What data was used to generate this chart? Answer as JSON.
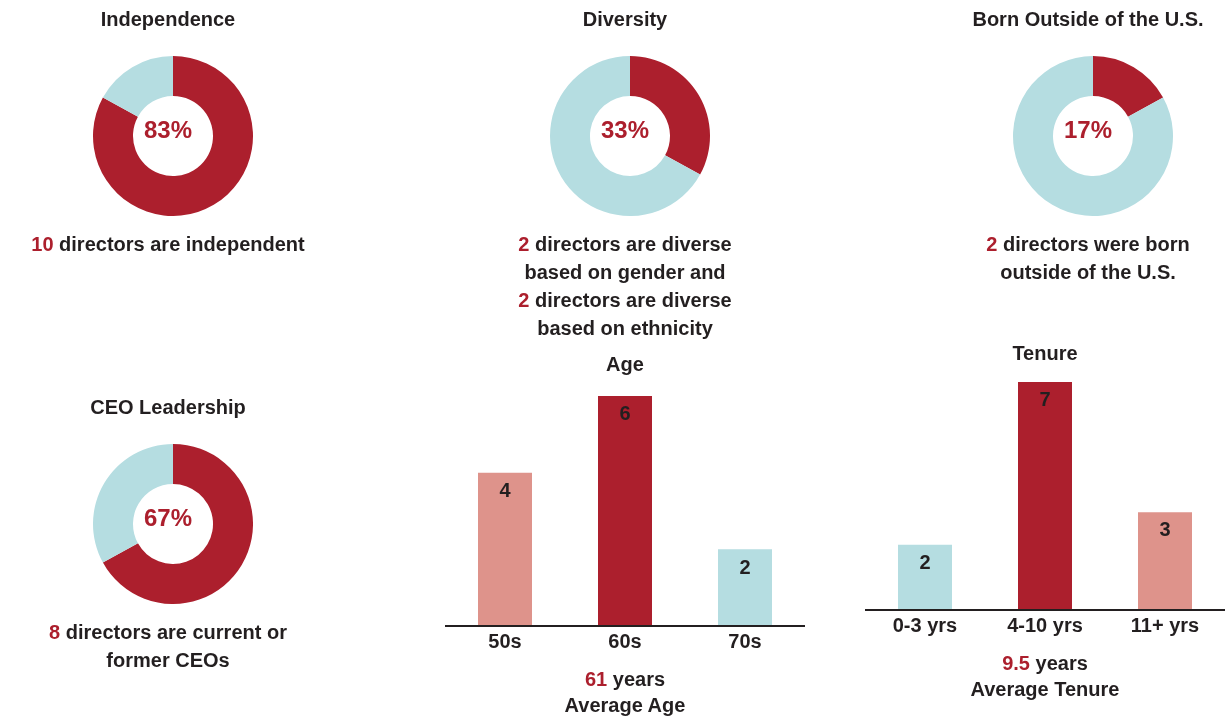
{
  "chart_data": [
    {
      "type": "donut",
      "title": "Independence",
      "categories": [
        null,
        null
      ],
      "values": [
        83,
        17
      ],
      "colors": [
        "#ac1f2d",
        "#b5dde1"
      ],
      "annotations": [
        "83%",
        "10 directors are independent"
      ]
    },
    {
      "type": "donut",
      "title": "Diversity",
      "categories": [
        null,
        null
      ],
      "values": [
        33,
        67
      ],
      "colors": [
        "#ac1f2d",
        "#b5dde1"
      ],
      "annotations": [
        "33%",
        "2 directors are diverse based on gender and",
        "2 directors are diverse based on ethnicity"
      ]
    },
    {
      "type": "donut",
      "title": "Born Outside of the U.S.",
      "categories": [
        null,
        null
      ],
      "values": [
        17,
        83
      ],
      "colors": [
        "#ac1f2d",
        "#b5dde1"
      ],
      "annotations": [
        "17%",
        "2 directors were born outside of the U.S."
      ]
    },
    {
      "type": "donut",
      "title": "CEO Leadership",
      "categories": [
        null,
        null
      ],
      "values": [
        67,
        33
      ],
      "colors": [
        "#ac1f2d",
        "#b5dde1"
      ],
      "annotations": [
        "67%",
        "8 directors are current or former CEOs"
      ]
    },
    {
      "type": "bar",
      "title": "Age",
      "categories": [
        "50s",
        "60s",
        "70s"
      ],
      "values": [
        4,
        6,
        2
      ],
      "colors": [
        "#de938b",
        "#ac1f2d",
        "#b5dde1"
      ],
      "data_labels": true,
      "annotations": [
        "61 years",
        "Average Age"
      ]
    },
    {
      "type": "bar",
      "title": "Tenure",
      "categories": [
        "0-3 yrs",
        "4-10 yrs",
        "11+ yrs"
      ],
      "values": [
        2,
        7,
        3
      ],
      "colors": [
        "#b5dde1",
        "#ac1f2d",
        "#de938b"
      ],
      "data_labels": true,
      "annotations": [
        "9.5 years",
        "Average Tenure"
      ]
    }
  ]
}
